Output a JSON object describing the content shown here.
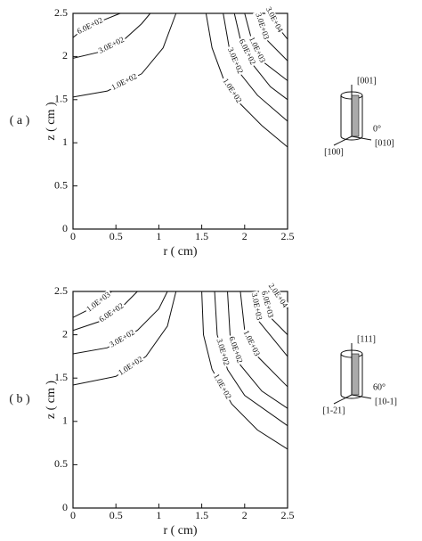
{
  "chart_data": [
    {
      "type": "contour",
      "panel_label": "( a )",
      "xlabel": "r ( cm)",
      "ylabel": "z ( cm )",
      "xlim": [
        0,
        2.5
      ],
      "ylim": [
        0,
        2.5
      ],
      "xticks": [
        0,
        0.5,
        1,
        1.5,
        2,
        2.5
      ],
      "yticks": [
        0,
        0.5,
        1,
        1.5,
        2,
        2.5
      ],
      "contours": [
        {
          "level": 600,
          "level_label": "6.0E+02",
          "x": [
            0,
            0.1,
            0.3,
            0.55
          ],
          "y": [
            2.22,
            2.3,
            2.4,
            2.5
          ]
        },
        {
          "level": 300,
          "level_label": "3.0E+02",
          "x": [
            0,
            0.3,
            0.6,
            0.8,
            0.9
          ],
          "y": [
            1.98,
            2.05,
            2.2,
            2.38,
            2.5
          ]
        },
        {
          "level": 100,
          "level_label": "1.0E+02",
          "x": [
            0,
            0.4,
            0.8,
            1.05,
            1.2
          ],
          "y": [
            1.53,
            1.6,
            1.8,
            2.1,
            2.5
          ]
        },
        {
          "level": 100,
          "level_label": "1.0E+02",
          "x": [
            1.55,
            1.62,
            1.75,
            1.95,
            2.2,
            2.5
          ],
          "y": [
            2.5,
            2.1,
            1.75,
            1.45,
            1.2,
            0.95
          ]
        },
        {
          "level": 300,
          "level_label": "3.0E+02",
          "x": [
            1.75,
            1.82,
            1.95,
            2.15,
            2.5
          ],
          "y": [
            2.5,
            2.1,
            1.8,
            1.55,
            1.25
          ]
        },
        {
          "level": 600,
          "level_label": "6.0E+02",
          "x": [
            1.88,
            1.95,
            2.1,
            2.3,
            2.5
          ],
          "y": [
            2.5,
            2.2,
            1.9,
            1.65,
            1.5
          ]
        },
        {
          "level": 1000,
          "level_label": "1.0E+03",
          "x": [
            2.0,
            2.08,
            2.2,
            2.5
          ],
          "y": [
            2.5,
            2.2,
            1.95,
            1.72
          ]
        },
        {
          "level": 3000,
          "level_label": "3.0E+03",
          "x": [
            2.15,
            2.25,
            2.5
          ],
          "y": [
            2.5,
            2.2,
            1.95
          ]
        },
        {
          "level": 30000,
          "level_label": "3.0E+04",
          "x": [
            2.3,
            2.38,
            2.5
          ],
          "y": [
            2.5,
            2.35,
            2.2
          ]
        }
      ],
      "inset": {
        "top": "[001]",
        "angle": "0°",
        "left": "[100]",
        "right": "[010]"
      }
    },
    {
      "type": "contour",
      "panel_label": "( b )",
      "xlabel": "r ( cm)",
      "ylabel": "z ( cm )",
      "xlim": [
        0,
        2.5
      ],
      "ylim": [
        0,
        2.5
      ],
      "xticks": [
        0,
        0.5,
        1,
        1.5,
        2,
        2.5
      ],
      "yticks": [
        0,
        0.5,
        1,
        1.5,
        2,
        2.5
      ],
      "contours": [
        {
          "level": 1000,
          "level_label": "1.0E+03",
          "x": [
            0,
            0.2,
            0.4,
            0.45
          ],
          "y": [
            2.2,
            2.3,
            2.45,
            2.5
          ]
        },
        {
          "level": 600,
          "level_label": "6.0E+02",
          "x": [
            0,
            0.3,
            0.6,
            0.75
          ],
          "y": [
            2.05,
            2.15,
            2.35,
            2.5
          ]
        },
        {
          "level": 300,
          "level_label": "3.0E+02",
          "x": [
            0,
            0.4,
            0.75,
            1.0,
            1.1
          ],
          "y": [
            1.78,
            1.85,
            2.05,
            2.3,
            2.5
          ]
        },
        {
          "level": 100,
          "level_label": "1.0E+02",
          "x": [
            0,
            0.5,
            0.85,
            1.1,
            1.2
          ],
          "y": [
            1.42,
            1.52,
            1.75,
            2.1,
            2.5
          ]
        },
        {
          "level": 100,
          "level_label": "1.0E+02",
          "x": [
            1.5,
            1.52,
            1.62,
            1.85,
            2.15,
            2.5
          ],
          "y": [
            2.5,
            2.0,
            1.6,
            1.2,
            0.9,
            0.68
          ]
        },
        {
          "level": 300,
          "level_label": "3.0E+02",
          "x": [
            1.65,
            1.68,
            1.8,
            2.0,
            2.5
          ],
          "y": [
            2.5,
            2.0,
            1.6,
            1.3,
            0.95
          ]
        },
        {
          "level": 600,
          "level_label": "6.0E+02",
          "x": [
            1.8,
            1.83,
            1.95,
            2.2,
            2.5
          ],
          "y": [
            2.5,
            2.0,
            1.65,
            1.35,
            1.15
          ]
        },
        {
          "level": 1000,
          "level_label": "1.0E+03",
          "x": [
            1.95,
            2.0,
            2.15,
            2.5
          ],
          "y": [
            2.5,
            2.05,
            1.75,
            1.4
          ]
        },
        {
          "level": 3000,
          "level_label": "3.0E+03",
          "x": [
            2.1,
            2.17,
            2.5
          ],
          "y": [
            2.5,
            2.15,
            1.75
          ]
        },
        {
          "level": 6000,
          "level_label": "6.0E+03",
          "x": [
            2.22,
            2.3,
            2.5
          ],
          "y": [
            2.5,
            2.2,
            2.0
          ]
        },
        {
          "level": 20000,
          "level_label": "2.0E+04",
          "x": [
            2.35,
            2.42,
            2.5
          ],
          "y": [
            2.5,
            2.4,
            2.3
          ]
        }
      ],
      "inset": {
        "top": "[111]",
        "angle": "60°",
        "left": "[1-21]",
        "right": "[10-1]"
      }
    }
  ]
}
